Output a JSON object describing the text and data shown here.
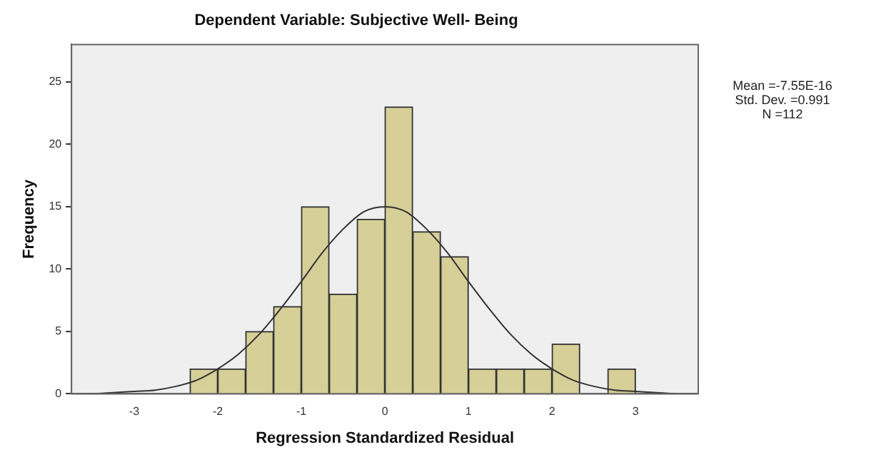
{
  "chart_data": {
    "type": "histogram",
    "title": "Dependent Variable: Subjective Well- Being",
    "xlabel": "Regression Standardized Residual",
    "ylabel": "Frequency",
    "series": [
      {
        "color": "#d6cf98",
        "bins": [
          -2.333,
          -2,
          -1.667,
          -1.333,
          -1,
          -0.667,
          -0.333,
          0,
          0.333,
          0.667,
          1,
          1.333,
          1.667,
          2,
          2.333,
          2.667,
          3
        ],
        "values": [
          2,
          2,
          5,
          7,
          15,
          8,
          14,
          23,
          13,
          11,
          2,
          2,
          2,
          4,
          0,
          2
        ]
      },
      {
        "type": "line",
        "color": "#333333",
        "marker": "none",
        "x": [
          -3.75,
          -3.5,
          -3.25,
          -3,
          -2.75,
          -2.5,
          -2.25,
          -2,
          -1.75,
          -1.5,
          -1.25,
          -1,
          -0.75,
          -0.5,
          -0.25,
          0,
          0.25,
          0.5,
          0.75,
          1,
          1.25,
          1.5,
          1.75,
          2,
          2.25,
          2.5,
          2.75,
          3,
          3.25,
          3.5,
          3.75
        ],
        "values": [
          0,
          0,
          0.1,
          0.2,
          0.3,
          0.6,
          1.1,
          2.0,
          3.2,
          4.8,
          6.8,
          9.0,
          11.3,
          13.2,
          14.6,
          15.0,
          14.6,
          13.2,
          11.3,
          9.0,
          6.8,
          4.8,
          3.2,
          2.0,
          1.1,
          0.6,
          0.3,
          0.2,
          0.1,
          0,
          0
        ]
      }
    ],
    "xlim": [
      -3.75,
      3.75
    ],
    "xticks": [
      -3,
      -2,
      -1,
      0,
      1,
      2,
      3
    ],
    "ylim": [
      0,
      28
    ],
    "yticks": [
      0,
      5,
      10,
      15,
      20,
      25
    ],
    "grid": false,
    "legend": false,
    "annotations": [
      "Mean =-7.55E-16",
      "Std. Dev. =0.991",
      "N =112"
    ]
  }
}
